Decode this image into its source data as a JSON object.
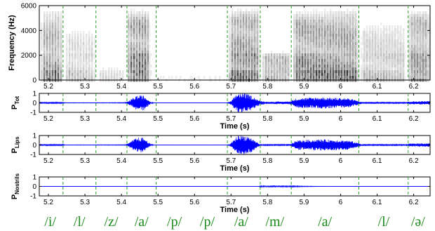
{
  "chart_data": [
    {
      "type": "heatmap",
      "name": "spectrogram",
      "ylabel": "Frequency (Hz)",
      "xlim": [
        5.175,
        6.245
      ],
      "ylim": [
        0,
        6000
      ],
      "yticks": [
        0,
        2000,
        4000,
        6000
      ],
      "xticks": [
        5.2,
        5.3,
        5.4,
        5.5,
        5.6,
        5.7,
        5.8,
        5.9,
        6,
        6.1,
        6.2
      ],
      "colormap": "gray-inverted",
      "grid": false,
      "segments": [
        {
          "t0": 5.175,
          "t1": 5.24,
          "strength": 0.75,
          "top": 6000,
          "voiced": true
        },
        {
          "t0": 5.24,
          "t1": 5.33,
          "strength": 0.35,
          "top": 4500,
          "voiced": true
        },
        {
          "t0": 5.33,
          "t1": 5.41,
          "strength": 0.25,
          "top": 1200,
          "voiced": true
        },
        {
          "t0": 5.41,
          "t1": 5.48,
          "strength": 0.95,
          "top": 6000,
          "voiced": true
        },
        {
          "t0": 5.48,
          "t1": 5.69,
          "strength": 0.0,
          "top": 0,
          "voiced": false
        },
        {
          "t0": 5.69,
          "t1": 5.78,
          "strength": 0.95,
          "top": 6000,
          "voiced": true
        },
        {
          "t0": 5.78,
          "t1": 5.865,
          "strength": 0.55,
          "top": 2500,
          "voiced": true
        },
        {
          "t0": 5.865,
          "t1": 6.05,
          "strength": 0.9,
          "top": 6000,
          "voiced": true
        },
        {
          "t0": 6.05,
          "t1": 6.18,
          "strength": 0.45,
          "top": 5000,
          "voiced": true
        },
        {
          "t0": 6.18,
          "t1": 6.245,
          "strength": 0.8,
          "top": 6000,
          "voiced": true
        }
      ]
    },
    {
      "type": "line",
      "name": "P_Tot",
      "ylabel_main": "P",
      "ylabel_sub": "Tot",
      "xlabel": "Time (s)",
      "xlim": [
        5.175,
        6.245
      ],
      "ylim": [
        -1,
        1
      ],
      "yticks": [
        -1,
        0,
        1
      ],
      "xticks": [
        5.2,
        5.3,
        5.4,
        5.5,
        5.6,
        5.7,
        5.8,
        5.9,
        6,
        6.1,
        6.2
      ],
      "color": "#0000ff",
      "envelope": [
        [
          5.175,
          0.05
        ],
        [
          5.24,
          0.06
        ],
        [
          5.245,
          0.02
        ],
        [
          5.33,
          0.02
        ],
        [
          5.41,
          0.03
        ],
        [
          5.42,
          0.2
        ],
        [
          5.44,
          0.75
        ],
        [
          5.46,
          0.8
        ],
        [
          5.48,
          0.1
        ],
        [
          5.49,
          0.01
        ],
        [
          5.69,
          0.01
        ],
        [
          5.7,
          0.2
        ],
        [
          5.72,
          1.1
        ],
        [
          5.75,
          0.9
        ],
        [
          5.78,
          0.2
        ],
        [
          5.8,
          0.12
        ],
        [
          5.86,
          0.15
        ],
        [
          5.88,
          0.5
        ],
        [
          5.95,
          0.6
        ],
        [
          6.02,
          0.5
        ],
        [
          6.05,
          0.2
        ],
        [
          6.06,
          0.05
        ],
        [
          6.17,
          0.06
        ],
        [
          6.19,
          0.15
        ],
        [
          6.245,
          0.2
        ]
      ]
    },
    {
      "type": "line",
      "name": "P_Lips",
      "ylabel_main": "P",
      "ylabel_sub": "Lips",
      "xlabel": "Time (s)",
      "xlim": [
        5.175,
        6.245
      ],
      "ylim": [
        -1,
        1
      ],
      "yticks": [
        -1,
        0,
        1
      ],
      "xticks": [
        5.2,
        5.3,
        5.4,
        5.5,
        5.6,
        5.7,
        5.8,
        5.9,
        6,
        6.1,
        6.2
      ],
      "color": "#0000ff",
      "envelope": [
        [
          5.175,
          0.05
        ],
        [
          5.24,
          0.06
        ],
        [
          5.245,
          0.02
        ],
        [
          5.33,
          0.02
        ],
        [
          5.41,
          0.03
        ],
        [
          5.42,
          0.2
        ],
        [
          5.44,
          0.75
        ],
        [
          5.46,
          0.8
        ],
        [
          5.48,
          0.1
        ],
        [
          5.49,
          0.01
        ],
        [
          5.69,
          0.01
        ],
        [
          5.7,
          0.2
        ],
        [
          5.72,
          1.1
        ],
        [
          5.75,
          0.9
        ],
        [
          5.78,
          0.05
        ],
        [
          5.86,
          0.05
        ],
        [
          5.88,
          0.5
        ],
        [
          5.95,
          0.6
        ],
        [
          6.02,
          0.5
        ],
        [
          6.05,
          0.2
        ],
        [
          6.06,
          0.05
        ],
        [
          6.17,
          0.06
        ],
        [
          6.19,
          0.15
        ],
        [
          6.245,
          0.2
        ]
      ]
    },
    {
      "type": "line",
      "name": "P_Nostrils",
      "ylabel_main": "P",
      "ylabel_sub": "Nostrils",
      "xlabel": "Time (s)",
      "xlim": [
        5.175,
        6.245
      ],
      "ylim": [
        -1,
        1
      ],
      "yticks": [
        -1,
        0,
        1
      ],
      "xticks": [
        5.2,
        5.3,
        5.4,
        5.5,
        5.6,
        5.7,
        5.8,
        5.9,
        6,
        6.1,
        6.2
      ],
      "color": "#0000ff",
      "envelope": [
        [
          5.175,
          0.0
        ],
        [
          5.775,
          0.0
        ],
        [
          5.78,
          0.06
        ],
        [
          5.82,
          0.1
        ],
        [
          5.86,
          0.06
        ],
        [
          5.9,
          0.03
        ],
        [
          5.95,
          0.01
        ],
        [
          5.97,
          0.0
        ],
        [
          6.245,
          0.0
        ]
      ]
    }
  ],
  "boundaries": [
    5.24,
    5.33,
    5.415,
    5.495,
    5.69,
    5.78,
    5.865,
    6.05,
    6.185
  ],
  "boundary_color": "#2ca02c",
  "phonemes": [
    {
      "label": "/i/",
      "t": 5.205
    },
    {
      "label": "/l/",
      "t": 5.285
    },
    {
      "label": "/z/",
      "t": 5.372
    },
    {
      "label": "/a/",
      "t": 5.455
    },
    {
      "label": "/p/",
      "t": 5.545
    },
    {
      "label": "/p/",
      "t": 5.635
    },
    {
      "label": "/a/",
      "t": 5.728
    },
    {
      "label": "/m/",
      "t": 5.82
    },
    {
      "label": "/a/",
      "t": 5.957
    },
    {
      "label": "/l/",
      "t": 6.118
    },
    {
      "label": "/ə/",
      "t": 6.212
    }
  ]
}
